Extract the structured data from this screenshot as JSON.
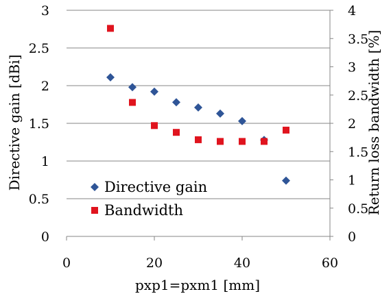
{
  "chart_data": {
    "type": "scatter",
    "xlabel": "pxp1=pxm1 [mm]",
    "ylabel_left": "Directive gain [dBi]",
    "ylabel_right": "Return loss bandwidth [%]",
    "xlim": [
      0,
      60
    ],
    "ylim_left": [
      0,
      3
    ],
    "ylim_right": [
      0,
      4
    ],
    "x_ticks": [
      "0",
      "20",
      "40",
      "60"
    ],
    "y_left_ticks": [
      "0",
      "0.5",
      "1",
      "1.5",
      "2",
      "2.5",
      "3"
    ],
    "y_right_ticks": [
      "0",
      "0.5",
      "1",
      "1.5",
      "2",
      "2.5",
      "3",
      "3.5",
      "4"
    ],
    "grid": "horizontal",
    "legend_position": "lower-left",
    "series": [
      {
        "name": "Directive gain",
        "axis": "left",
        "marker": "diamond",
        "color": "#2F5597",
        "points": [
          {
            "x": 10,
            "y": 2.11
          },
          {
            "x": 15,
            "y": 1.98
          },
          {
            "x": 20,
            "y": 1.92
          },
          {
            "x": 25,
            "y": 1.78
          },
          {
            "x": 30,
            "y": 1.71
          },
          {
            "x": 35,
            "y": 1.63
          },
          {
            "x": 40,
            "y": 1.53
          },
          {
            "x": 45,
            "y": 1.28
          },
          {
            "x": 50,
            "y": 0.74
          }
        ]
      },
      {
        "name": "Bandwidth",
        "axis": "right",
        "marker": "square",
        "color": "#E0141E",
        "points": [
          {
            "x": 10,
            "y": 3.68
          },
          {
            "x": 15,
            "y": 2.37
          },
          {
            "x": 20,
            "y": 1.96
          },
          {
            "x": 25,
            "y": 1.84
          },
          {
            "x": 30,
            "y": 1.71
          },
          {
            "x": 35,
            "y": 1.68
          },
          {
            "x": 40,
            "y": 1.68
          },
          {
            "x": 45,
            "y": 1.68
          },
          {
            "x": 50,
            "y": 1.88
          }
        ]
      }
    ]
  }
}
